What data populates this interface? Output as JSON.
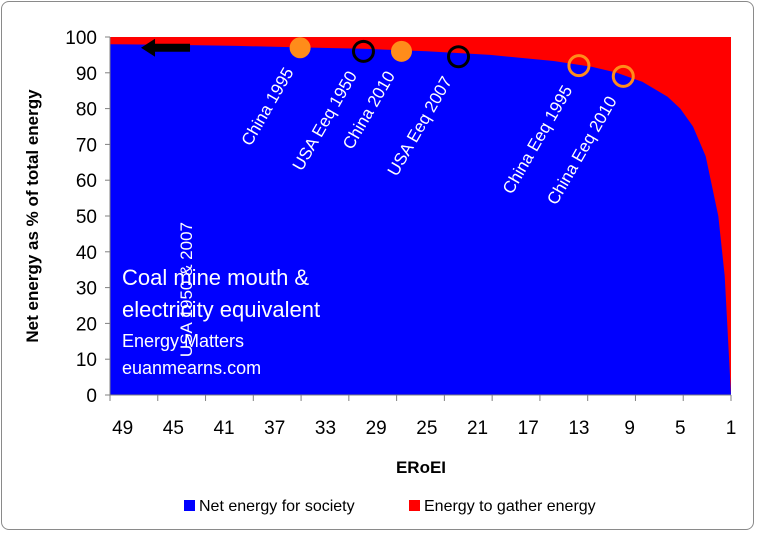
{
  "chart_data": {
    "type": "area",
    "title": "",
    "xlabel": "ERoEI",
    "ylabel": "Net energy as % of total energy",
    "x_ticks": [
      "49",
      "45",
      "41",
      "37",
      "33",
      "29",
      "25",
      "21",
      "17",
      "13",
      "9",
      "5",
      "1"
    ],
    "y_ticks": [
      "0",
      "10",
      "20",
      "30",
      "40",
      "50",
      "60",
      "70",
      "80",
      "90",
      "100"
    ],
    "xlim": [
      50,
      1
    ],
    "ylim": [
      0,
      100
    ],
    "series": [
      {
        "name": "Net energy for society",
        "color": "#0000ff",
        "x": [
          50,
          45,
          40,
          35,
          30,
          25,
          20,
          15,
          12,
          10,
          8,
          6,
          5,
          4,
          3,
          2,
          1.5,
          1
        ],
        "values": [
          98,
          97.8,
          97.5,
          97.1,
          96.7,
          96,
          95,
          93.3,
          91.7,
          90,
          87.5,
          83.3,
          80,
          75,
          66.7,
          50,
          33.3,
          0
        ]
      },
      {
        "name": "Energy to gather energy",
        "color": "#ff0000",
        "x": [
          50,
          1
        ],
        "values": [
          100,
          100
        ]
      }
    ],
    "annotations": [
      {
        "label": "USA 1950 & 2007",
        "x": 47,
        "y": 97,
        "marker": "arrow",
        "color": "#000000"
      },
      {
        "label": "China 1995",
        "x": 35,
        "y": 97,
        "marker": "filled-circle",
        "color": "#ff8c1a"
      },
      {
        "label": "USA Eeq 1950",
        "x": 30,
        "y": 96,
        "marker": "open-circle",
        "color": "#000000"
      },
      {
        "label": "China 2010",
        "x": 27,
        "y": 96,
        "marker": "filled-circle",
        "color": "#ff8c1a"
      },
      {
        "label": "USA Eeq 2007",
        "x": 22.5,
        "y": 94.5,
        "marker": "open-circle",
        "color": "#000000"
      },
      {
        "label": "China Eeq 1995",
        "x": 13,
        "y": 92,
        "marker": "open-circle",
        "color": "#ff8c1a"
      },
      {
        "label": "China Eeq 2010",
        "x": 9.5,
        "y": 89,
        "marker": "open-circle",
        "color": "#ff8c1a"
      }
    ],
    "notes": {
      "line1": "Coal mine mouth &",
      "line2": "electricity equivalent",
      "line3": "Energy Matters",
      "line4": "euanmearns.com"
    },
    "legend": [
      {
        "label": "Net energy for society",
        "color": "#0000ff"
      },
      {
        "label": "Energy to gather energy",
        "color": "#ff0000"
      }
    ],
    "legend_position": "bottom"
  }
}
